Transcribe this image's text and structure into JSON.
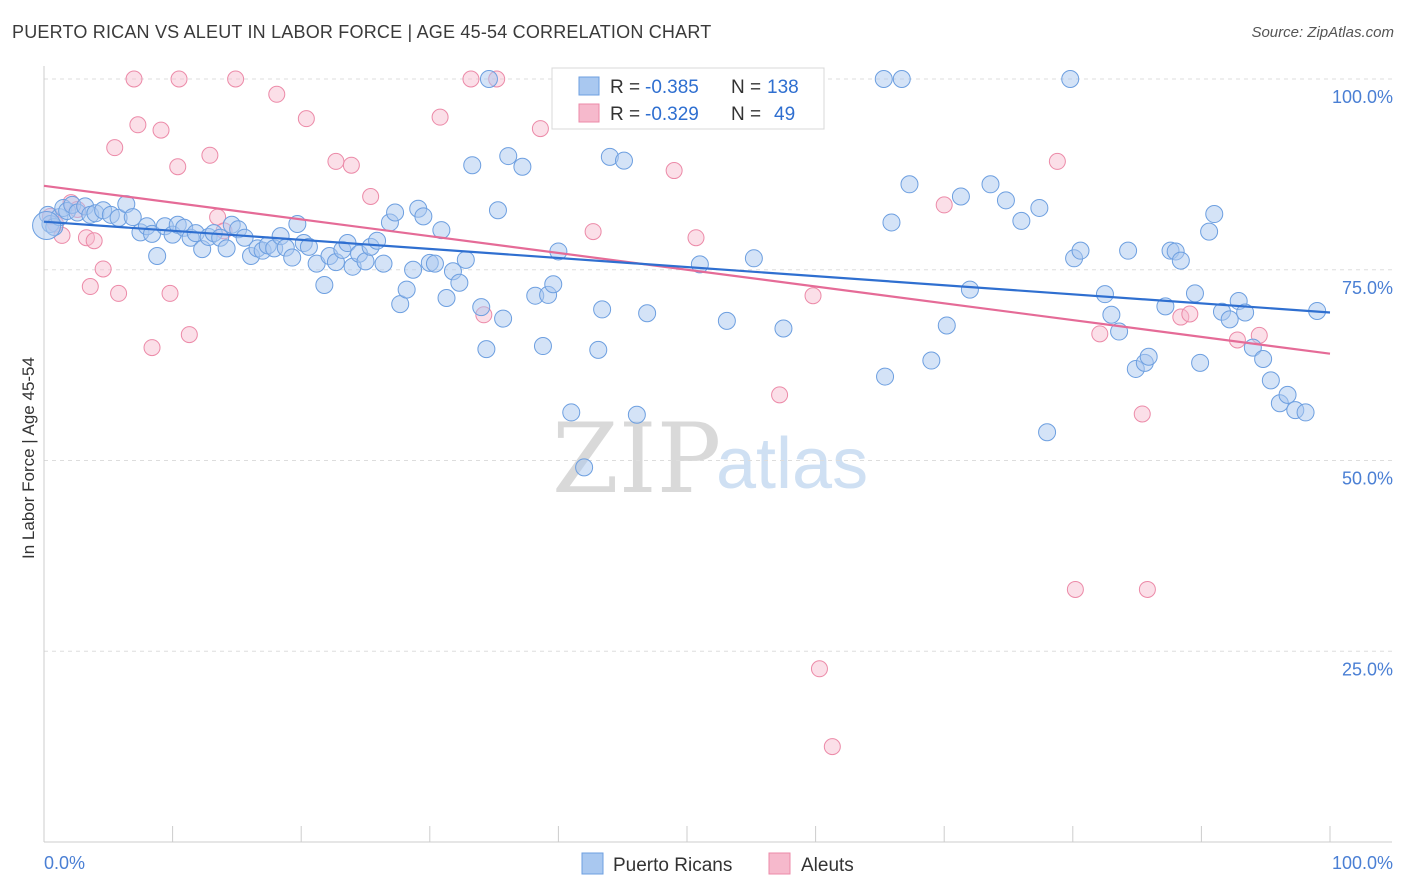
{
  "header": {
    "title": "PUERTO RICAN VS ALEUT IN LABOR FORCE | AGE 45-54 CORRELATION CHART",
    "source": "Source: ZipAtlas.com"
  },
  "watermark": {
    "zip": "ZIP",
    "atlas": "atlas"
  },
  "legend": {
    "rows": [
      {
        "r_label": "R =",
        "r_value": "-0.385",
        "n_label": "N =",
        "n_value": "138"
      },
      {
        "r_label": "R =",
        "r_value": "-0.329",
        "n_label": "N =",
        "n_value": "49"
      }
    ]
  },
  "bottom_legend": {
    "series1": "Puerto Ricans",
    "series2": "Aleuts"
  },
  "colors": {
    "blue_fill": "#a9c8f0",
    "blue_stroke": "#6d9fe0",
    "blue_line": "#2f6fd0",
    "pink_fill": "#f6b9cc",
    "pink_stroke": "#ec8aa8",
    "pink_line": "#e56b97",
    "grid": "#dddddd",
    "axis_tick_text": "#4a7fd4"
  },
  "chart_data": {
    "type": "scatter",
    "title": "PUERTO RICAN VS ALEUT IN LABOR FORCE | AGE 45-54 CORRELATION CHART",
    "xlabel": "",
    "ylabel": "In Labor Force | Age 45-54",
    "xlim": [
      0,
      100
    ],
    "ylim": [
      0,
      100
    ],
    "x_tick_labels": [
      "0.0%",
      "100.0%"
    ],
    "y_tick_labels": [
      "25.0%",
      "50.0%",
      "75.0%",
      "100.0%"
    ],
    "y_ticks": [
      25,
      50,
      75,
      100
    ],
    "grid": true,
    "legend_position": "top-center",
    "series": [
      {
        "name": "Puerto Ricans",
        "r": -0.385,
        "n": 138,
        "trend": {
          "x": [
            0,
            100
          ],
          "y": [
            81.3,
            69.4
          ]
        },
        "points": [
          [
            0.3,
            82.2
          ],
          [
            0.5,
            81.0
          ],
          [
            0.8,
            80.6
          ],
          [
            1.2,
            81.9
          ],
          [
            1.5,
            83.1
          ],
          [
            1.8,
            82.7
          ],
          [
            2.2,
            83.5
          ],
          [
            2.6,
            82.5
          ],
          [
            3.2,
            83.3
          ],
          [
            3.6,
            82.2
          ],
          [
            4.0,
            82.4
          ],
          [
            4.6,
            82.8
          ],
          [
            5.2,
            82.2
          ],
          [
            5.8,
            81.8
          ],
          [
            6.4,
            83.6
          ],
          [
            6.9,
            81.9
          ],
          [
            7.5,
            79.9
          ],
          [
            8.0,
            80.7
          ],
          [
            8.4,
            79.7
          ],
          [
            8.8,
            76.8
          ],
          [
            9.4,
            80.7
          ],
          [
            10.0,
            79.6
          ],
          [
            10.4,
            80.9
          ],
          [
            10.9,
            80.5
          ],
          [
            11.4,
            79.2
          ],
          [
            11.8,
            79.8
          ],
          [
            12.3,
            77.7
          ],
          [
            12.8,
            79.3
          ],
          [
            13.2,
            79.8
          ],
          [
            13.7,
            79.2
          ],
          [
            14.2,
            77.8
          ],
          [
            14.6,
            80.9
          ],
          [
            15.1,
            80.3
          ],
          [
            15.6,
            79.2
          ],
          [
            16.1,
            76.8
          ],
          [
            16.6,
            77.8
          ],
          [
            17.0,
            77.5
          ],
          [
            17.4,
            78.2
          ],
          [
            17.9,
            77.8
          ],
          [
            18.4,
            79.4
          ],
          [
            18.8,
            77.9
          ],
          [
            19.3,
            76.6
          ],
          [
            19.7,
            81.0
          ],
          [
            20.2,
            78.5
          ],
          [
            20.6,
            78.0
          ],
          [
            21.2,
            75.8
          ],
          [
            21.8,
            73.0
          ],
          [
            22.2,
            76.8
          ],
          [
            22.7,
            76.0
          ],
          [
            23.2,
            77.6
          ],
          [
            23.6,
            78.5
          ],
          [
            24.0,
            75.4
          ],
          [
            24.5,
            77.1
          ],
          [
            25.0,
            76.1
          ],
          [
            25.4,
            78.0
          ],
          [
            25.9,
            78.8
          ],
          [
            26.4,
            75.8
          ],
          [
            26.9,
            81.2
          ],
          [
            27.3,
            82.5
          ],
          [
            27.7,
            70.5
          ],
          [
            28.2,
            72.4
          ],
          [
            28.7,
            75.0
          ],
          [
            29.1,
            83.0
          ],
          [
            29.5,
            82.0
          ],
          [
            30.0,
            75.9
          ],
          [
            30.4,
            75.8
          ],
          [
            30.9,
            80.2
          ],
          [
            31.3,
            71.3
          ],
          [
            31.8,
            74.8
          ],
          [
            32.3,
            73.3
          ],
          [
            32.8,
            76.3
          ],
          [
            33.3,
            88.7
          ],
          [
            34.0,
            70.1
          ],
          [
            34.4,
            64.6
          ],
          [
            35.3,
            82.8
          ],
          [
            35.7,
            68.6
          ],
          [
            36.1,
            89.9
          ],
          [
            37.2,
            88.5
          ],
          [
            38.2,
            71.6
          ],
          [
            38.8,
            65.0
          ],
          [
            39.2,
            71.7
          ],
          [
            39.6,
            73.1
          ],
          [
            40.0,
            77.4
          ],
          [
            41.0,
            56.3
          ],
          [
            42.0,
            49.1
          ],
          [
            43.1,
            64.5
          ],
          [
            43.4,
            69.8
          ],
          [
            44.0,
            89.8
          ],
          [
            45.1,
            89.3
          ],
          [
            46.1,
            56.0
          ],
          [
            46.9,
            69.3
          ],
          [
            51.0,
            75.7
          ],
          [
            53.1,
            68.3
          ],
          [
            55.2,
            76.5
          ],
          [
            57.5,
            67.3
          ],
          [
            65.4,
            61.0
          ],
          [
            65.9,
            81.2
          ],
          [
            67.3,
            86.2
          ],
          [
            69.0,
            63.1
          ],
          [
            70.2,
            67.7
          ],
          [
            71.3,
            84.6
          ],
          [
            72.0,
            72.4
          ],
          [
            73.6,
            86.2
          ],
          [
            74.8,
            84.1
          ],
          [
            76.0,
            81.4
          ],
          [
            77.4,
            83.1
          ],
          [
            78.0,
            53.7
          ],
          [
            80.1,
            76.5
          ],
          [
            80.6,
            77.5
          ],
          [
            82.5,
            71.8
          ],
          [
            83.0,
            69.1
          ],
          [
            83.6,
            66.9
          ],
          [
            84.3,
            77.5
          ],
          [
            84.9,
            62.0
          ],
          [
            85.6,
            62.8
          ],
          [
            85.9,
            63.6
          ],
          [
            87.2,
            70.2
          ],
          [
            87.6,
            77.5
          ],
          [
            88.0,
            77.4
          ],
          [
            88.4,
            76.2
          ],
          [
            89.5,
            71.9
          ],
          [
            89.9,
            62.8
          ],
          [
            90.6,
            80.0
          ],
          [
            91.0,
            82.3
          ],
          [
            91.6,
            69.5
          ],
          [
            92.2,
            68.5
          ],
          [
            92.9,
            70.9
          ],
          [
            93.4,
            69.4
          ],
          [
            94.0,
            64.8
          ],
          [
            94.8,
            63.3
          ],
          [
            95.4,
            60.5
          ],
          [
            96.1,
            57.5
          ],
          [
            96.7,
            58.6
          ],
          [
            97.3,
            56.6
          ],
          [
            98.1,
            56.3
          ],
          [
            99.0,
            69.6
          ],
          [
            34.6,
            100
          ],
          [
            49.3,
            100
          ],
          [
            65.3,
            100
          ],
          [
            66.7,
            100
          ],
          [
            79.8,
            100
          ],
          [
            0.2,
            80.8
          ]
        ]
      },
      {
        "name": "Aleuts",
        "r": -0.329,
        "n": 49,
        "trend": {
          "x": [
            0,
            100
          ],
          "y": [
            86.0,
            64.0
          ]
        },
        "points": [
          [
            0.5,
            82.0
          ],
          [
            0.9,
            81.0
          ],
          [
            1.4,
            79.5
          ],
          [
            2.1,
            83.8
          ],
          [
            2.6,
            82.9
          ],
          [
            3.3,
            79.2
          ],
          [
            3.9,
            78.8
          ],
          [
            4.6,
            75.1
          ],
          [
            5.5,
            91.0
          ],
          [
            3.6,
            72.8
          ],
          [
            5.8,
            71.9
          ],
          [
            7.3,
            94.0
          ],
          [
            8.4,
            64.8
          ],
          [
            9.1,
            93.3
          ],
          [
            9.8,
            71.9
          ],
          [
            10.4,
            88.5
          ],
          [
            11.3,
            66.5
          ],
          [
            12.9,
            90.0
          ],
          [
            13.5,
            81.9
          ],
          [
            14.0,
            80.1
          ],
          [
            18.1,
            98.0
          ],
          [
            20.4,
            94.8
          ],
          [
            22.7,
            89.2
          ],
          [
            23.9,
            88.7
          ],
          [
            25.4,
            84.6
          ],
          [
            30.8,
            95.0
          ],
          [
            34.2,
            69.1
          ],
          [
            38.6,
            93.5
          ],
          [
            42.7,
            80.0
          ],
          [
            49.0,
            88.0
          ],
          [
            50.7,
            79.2
          ],
          [
            57.2,
            58.6
          ],
          [
            59.8,
            71.6
          ],
          [
            61.3,
            12.5
          ],
          [
            70.0,
            83.5
          ],
          [
            78.8,
            89.2
          ],
          [
            80.2,
            33.1
          ],
          [
            82.1,
            66.6
          ],
          [
            85.4,
            56.1
          ],
          [
            85.8,
            33.1
          ],
          [
            88.4,
            68.8
          ],
          [
            89.1,
            69.2
          ],
          [
            92.8,
            65.8
          ],
          [
            94.5,
            66.4
          ],
          [
            60.3,
            22.7
          ],
          [
            7.0,
            100
          ],
          [
            10.5,
            100
          ],
          [
            14.9,
            100
          ],
          [
            33.2,
            100
          ],
          [
            35.2,
            100
          ]
        ]
      }
    ]
  }
}
